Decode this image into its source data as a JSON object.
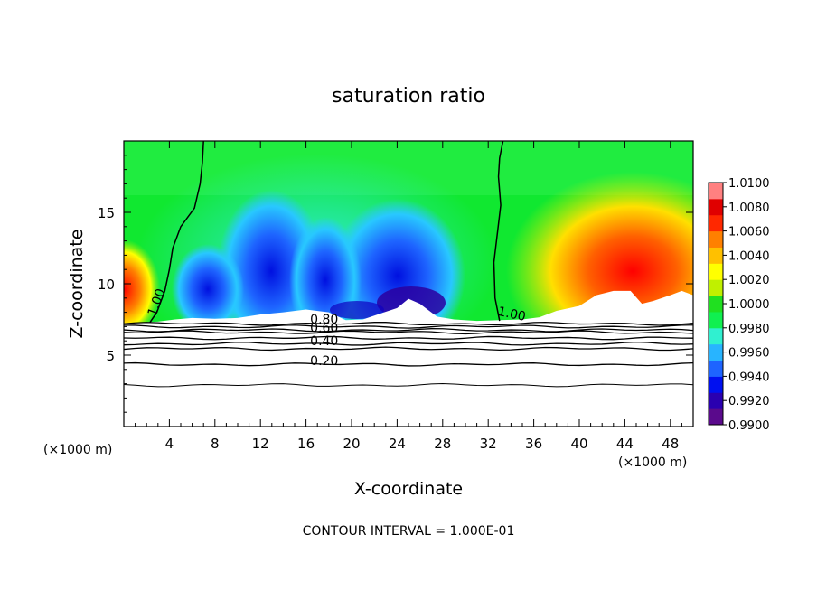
{
  "chart_data": {
    "type": "heatmap",
    "title": "saturation ratio",
    "xlabel": "X-coordinate",
    "ylabel": "Z-coordinate",
    "x_unit_left": "(×1000 m)",
    "x_unit_right": "(×1000 m)",
    "footer": "CONTOUR INTERVAL = 1.000E-01",
    "xlim": [
      0,
      50
    ],
    "ylim": [
      0,
      20
    ],
    "x_ticks": [
      4,
      8,
      12,
      16,
      20,
      24,
      28,
      32,
      36,
      40,
      44,
      48
    ],
    "x_tick_labels": [
      "4",
      "8",
      "12",
      "16",
      "20",
      "24",
      "28",
      "32",
      "36",
      "40",
      "44",
      "48"
    ],
    "y_ticks": [
      5,
      10,
      15
    ],
    "y_tick_labels": [
      "5",
      "10",
      "15"
    ],
    "colorbar": {
      "range": [
        0.99,
        1.01
      ],
      "labels": [
        "1.0100",
        "1.0080",
        "1.0060",
        "1.0040",
        "1.0020",
        "1.0000",
        "0.9980",
        "0.9960",
        "0.9940",
        "0.9920",
        "0.9900"
      ],
      "colors": [
        "#5a0a8c",
        "#2a00b0",
        "#0010f0",
        "#1e64ff",
        "#28b4ff",
        "#30f0d0",
        "#10f050",
        "#20e020",
        "#c0f000",
        "#ffff00",
        "#ffc000",
        "#ff8000",
        "#ff2800",
        "#e00000",
        "#ff8080"
      ]
    },
    "contour_labels": [
      {
        "text": "1.00",
        "x": 3.2,
        "y": 8.6
      },
      {
        "text": "1.00",
        "x": 34.0,
        "y": 7.6
      },
      {
        "text": "0.80",
        "x": 17.6,
        "y": 7.2
      },
      {
        "text": "0.60",
        "x": 17.6,
        "y": 6.6
      },
      {
        "text": "0.40",
        "x": 17.6,
        "y": 5.7
      },
      {
        "text": "0.20",
        "x": 17.6,
        "y": 4.3
      }
    ],
    "contour_line_1_left": {
      "x": [
        2.3,
        2.9,
        3.6,
        4.0,
        4.3,
        5.0,
        6.2,
        6.7,
        6.9,
        7.0
      ],
      "y": [
        7.3,
        8.0,
        9.5,
        11.0,
        12.5,
        14.0,
        15.3,
        17.0,
        18.5,
        20.0
      ]
    },
    "contour_line_1_right": {
      "x": [
        33.0,
        32.6,
        32.5,
        32.8,
        33.1,
        32.9,
        33.0,
        33.3
      ],
      "y": [
        7.4,
        9.0,
        11.5,
        13.5,
        15.5,
        17.5,
        18.8,
        20.0
      ]
    },
    "unsaturated_boundary": {
      "x": [
        0,
        1.5,
        3,
        4.5,
        6,
        8,
        10,
        12,
        14,
        16,
        18,
        19.5,
        21,
        22.5,
        24,
        25,
        26,
        27.5,
        29,
        31,
        33,
        35,
        36.5,
        38,
        40,
        41.5,
        43,
        44.5,
        45.5,
        46.5,
        48,
        49,
        50
      ],
      "y": [
        7.25,
        7.3,
        7.35,
        7.5,
        7.6,
        7.55,
        7.6,
        7.85,
        8.0,
        8.2,
        8.0,
        7.45,
        7.5,
        7.9,
        8.3,
        8.95,
        8.6,
        7.7,
        7.5,
        7.4,
        7.45,
        7.5,
        7.65,
        8.1,
        8.45,
        9.2,
        9.5,
        9.5,
        8.6,
        8.8,
        9.2,
        9.5,
        9.2
      ]
    },
    "lower_contours_y": [
      7.2,
      7.0,
      6.75,
      6.6,
      6.2,
      5.8,
      5.45,
      4.35,
      2.9
    ]
  }
}
